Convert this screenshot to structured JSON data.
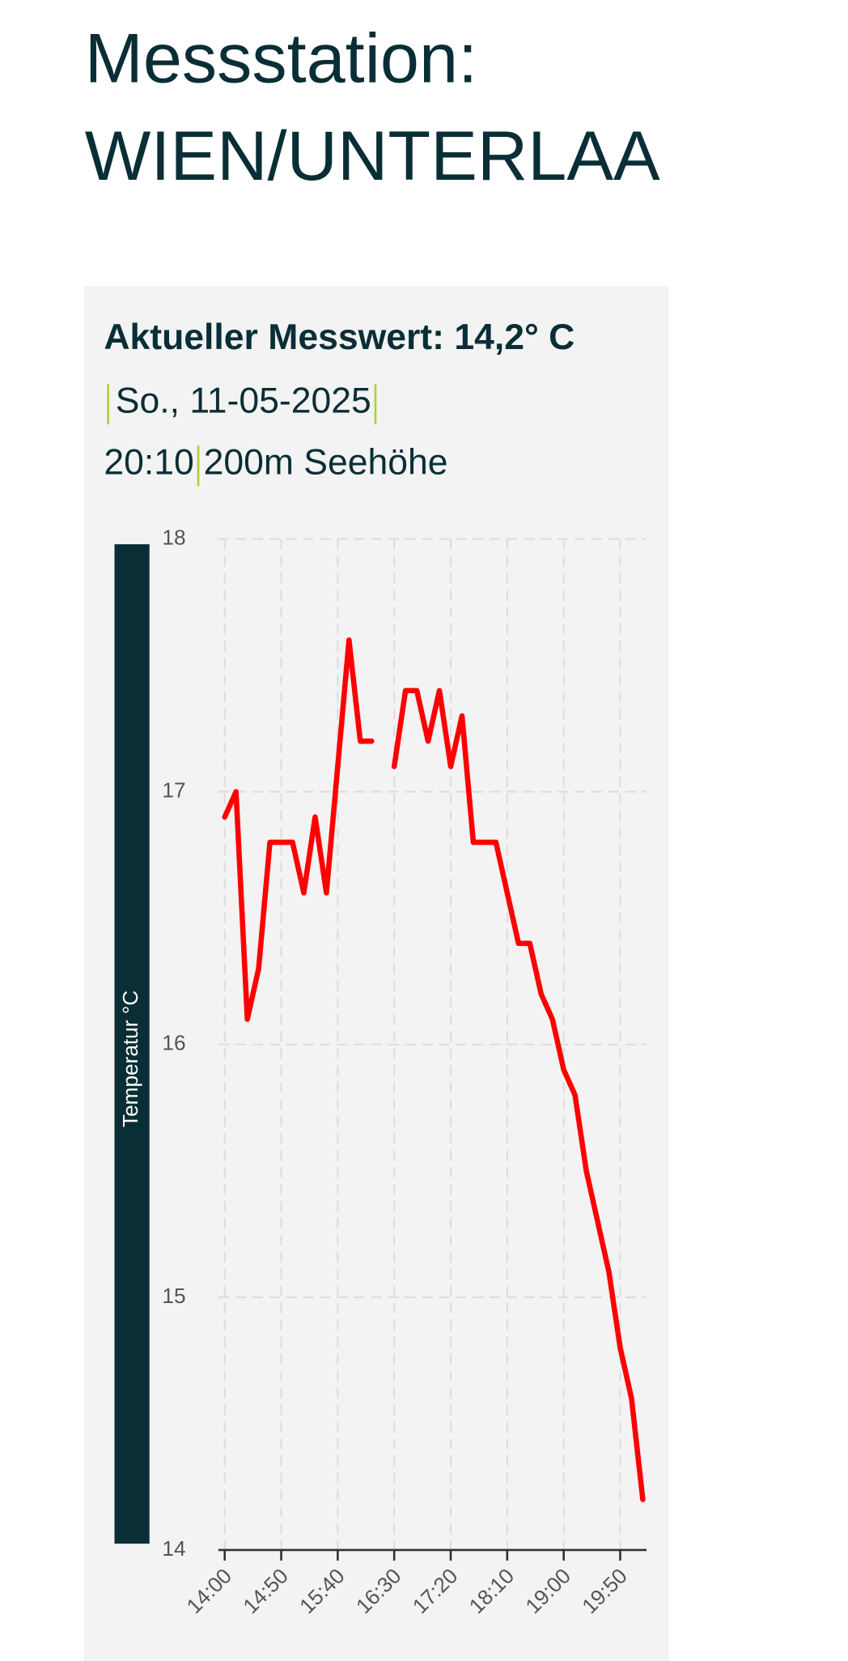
{
  "header": {
    "title_line1": "Messstation:",
    "title_line2": "WIEN/UNTERLAA"
  },
  "panel": {
    "current": "Aktueller Messwert: 14,2° C",
    "date": "So., 11-05-2025",
    "time": "20:10",
    "altitude": "200m Seehöhe"
  },
  "chart_data": {
    "type": "line",
    "y_label": "Temperatur °C",
    "color": "#ff0000",
    "categories": [
      "14:00",
      null,
      null,
      null,
      null,
      "14:50",
      null,
      null,
      null,
      null,
      "15:40",
      null,
      null,
      null,
      null,
      "16:30",
      null,
      null,
      null,
      null,
      "17:20",
      null,
      null,
      null,
      null,
      "18:10",
      null,
      null,
      null,
      null,
      "19:00",
      null,
      null,
      null,
      null,
      "19:50",
      null,
      null
    ],
    "values": [
      16.9,
      17.0,
      16.1,
      16.3,
      16.8,
      16.8,
      16.8,
      16.6,
      16.9,
      16.6,
      17.1,
      17.6,
      17.2,
      17.2,
      null,
      17.1,
      17.4,
      17.4,
      17.2,
      17.4,
      17.1,
      17.3,
      16.8,
      16.8,
      16.8,
      16.6,
      16.4,
      16.4,
      16.2,
      16.1,
      15.9,
      15.8,
      15.5,
      15.3,
      15.1,
      14.8,
      14.6,
      14.2
    ],
    "ylim": [
      14,
      18
    ],
    "yticks": [
      14,
      15,
      16,
      17,
      18
    ],
    "grid": true
  }
}
